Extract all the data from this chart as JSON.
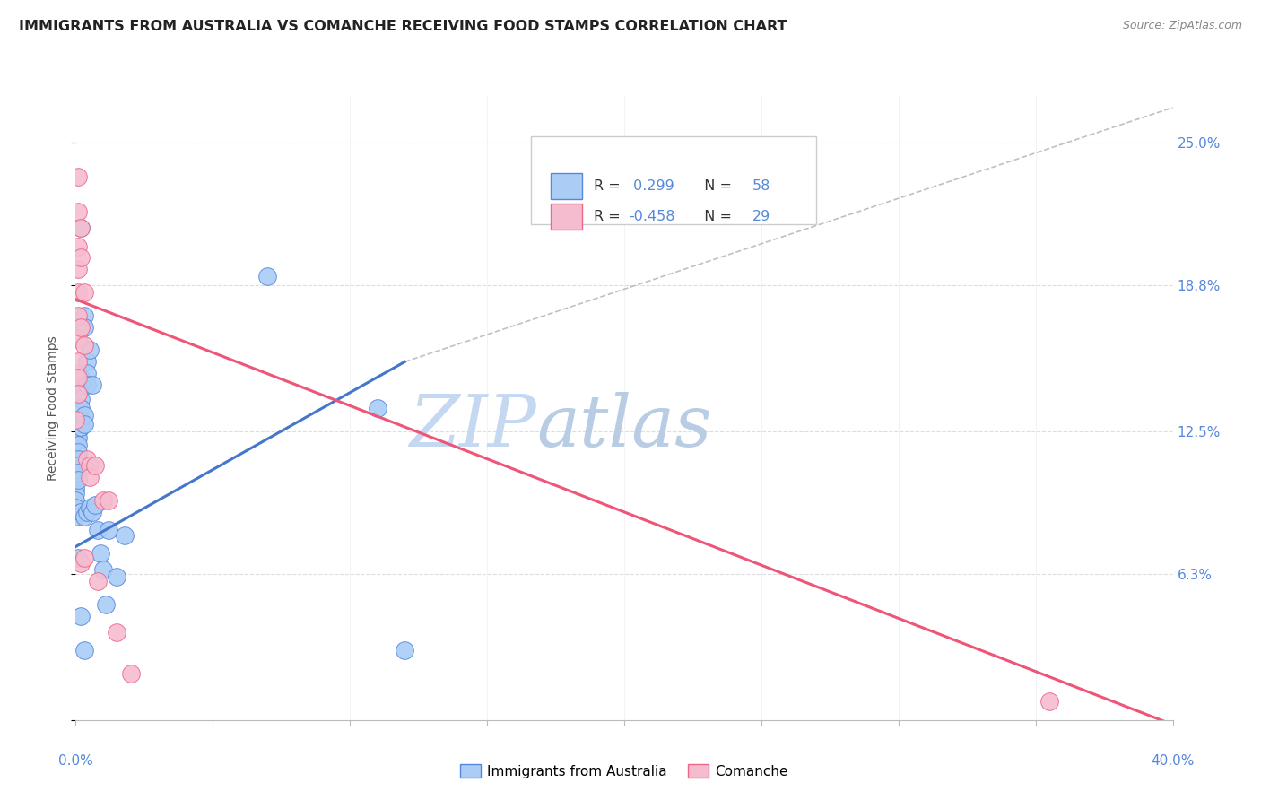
{
  "title": "IMMIGRANTS FROM AUSTRALIA VS COMANCHE RECEIVING FOOD STAMPS CORRELATION CHART",
  "source": "Source: ZipAtlas.com",
  "ylabel": "Receiving Food Stamps",
  "yticks": [
    0.0,
    0.063,
    0.125,
    0.188,
    0.25
  ],
  "ytick_labels": [
    "",
    "6.3%",
    "12.5%",
    "18.8%",
    "25.0%"
  ],
  "xlim": [
    0.0,
    0.4
  ],
  "ylim": [
    0.0,
    0.27
  ],
  "legend_blue_r": "0.299",
  "legend_blue_n": "58",
  "legend_pink_r": "-0.458",
  "legend_pink_n": "29",
  "blue_scatter": [
    [
      0.0,
      0.124
    ],
    [
      0.0,
      0.12
    ],
    [
      0.0,
      0.118
    ],
    [
      0.0,
      0.115
    ],
    [
      0.0,
      0.11
    ],
    [
      0.0,
      0.108
    ],
    [
      0.0,
      0.105
    ],
    [
      0.0,
      0.103
    ],
    [
      0.0,
      0.1
    ],
    [
      0.0,
      0.098
    ],
    [
      0.0,
      0.095
    ],
    [
      0.0,
      0.092
    ],
    [
      0.0,
      0.088
    ],
    [
      0.001,
      0.13
    ],
    [
      0.001,
      0.127
    ],
    [
      0.001,
      0.125
    ],
    [
      0.001,
      0.122
    ],
    [
      0.001,
      0.119
    ],
    [
      0.001,
      0.116
    ],
    [
      0.001,
      0.113
    ],
    [
      0.001,
      0.11
    ],
    [
      0.001,
      0.107
    ],
    [
      0.001,
      0.104
    ],
    [
      0.001,
      0.07
    ],
    [
      0.002,
      0.213
    ],
    [
      0.002,
      0.148
    ],
    [
      0.002,
      0.145
    ],
    [
      0.002,
      0.139
    ],
    [
      0.002,
      0.135
    ],
    [
      0.002,
      0.13
    ],
    [
      0.002,
      0.127
    ],
    [
      0.002,
      0.09
    ],
    [
      0.002,
      0.045
    ],
    [
      0.003,
      0.175
    ],
    [
      0.003,
      0.17
    ],
    [
      0.003,
      0.132
    ],
    [
      0.003,
      0.128
    ],
    [
      0.003,
      0.088
    ],
    [
      0.003,
      0.03
    ],
    [
      0.004,
      0.155
    ],
    [
      0.004,
      0.15
    ],
    [
      0.004,
      0.145
    ],
    [
      0.004,
      0.09
    ],
    [
      0.005,
      0.16
    ],
    [
      0.005,
      0.092
    ],
    [
      0.006,
      0.145
    ],
    [
      0.006,
      0.09
    ],
    [
      0.007,
      0.093
    ],
    [
      0.008,
      0.082
    ],
    [
      0.009,
      0.072
    ],
    [
      0.01,
      0.065
    ],
    [
      0.011,
      0.05
    ],
    [
      0.012,
      0.082
    ],
    [
      0.015,
      0.062
    ],
    [
      0.018,
      0.08
    ],
    [
      0.07,
      0.192
    ],
    [
      0.11,
      0.135
    ],
    [
      0.12,
      0.03
    ]
  ],
  "pink_scatter": [
    [
      0.0,
      0.15
    ],
    [
      0.0,
      0.13
    ],
    [
      0.001,
      0.235
    ],
    [
      0.001,
      0.22
    ],
    [
      0.001,
      0.205
    ],
    [
      0.001,
      0.195
    ],
    [
      0.001,
      0.185
    ],
    [
      0.001,
      0.175
    ],
    [
      0.001,
      0.165
    ],
    [
      0.001,
      0.155
    ],
    [
      0.001,
      0.148
    ],
    [
      0.001,
      0.141
    ],
    [
      0.002,
      0.213
    ],
    [
      0.002,
      0.2
    ],
    [
      0.002,
      0.17
    ],
    [
      0.002,
      0.068
    ],
    [
      0.003,
      0.185
    ],
    [
      0.003,
      0.162
    ],
    [
      0.003,
      0.07
    ],
    [
      0.004,
      0.113
    ],
    [
      0.005,
      0.11
    ],
    [
      0.005,
      0.105
    ],
    [
      0.007,
      0.11
    ],
    [
      0.008,
      0.06
    ],
    [
      0.01,
      0.095
    ],
    [
      0.012,
      0.095
    ],
    [
      0.015,
      0.038
    ],
    [
      0.02,
      0.02
    ],
    [
      0.355,
      0.008
    ]
  ],
  "blue_line_x": [
    0.0,
    0.12
  ],
  "blue_line_y": [
    0.075,
    0.155
  ],
  "pink_line_x": [
    0.0,
    0.4
  ],
  "pink_line_y": [
    0.182,
    -0.002
  ],
  "dashed_line_x": [
    0.12,
    0.4
  ],
  "dashed_line_y": [
    0.155,
    0.265
  ],
  "blue_color": "#aaccf5",
  "pink_color": "#f5bcd0",
  "blue_edge_color": "#5588dd",
  "pink_edge_color": "#ee6688",
  "blue_line_color": "#4477cc",
  "pink_line_color": "#ee5577",
  "dashed_color": "#c0c0c0",
  "watermark_zip_color": "#c8d8f0",
  "watermark_atlas_color": "#c0d8e8",
  "background_color": "#ffffff",
  "title_fontsize": 11.5,
  "source_fontsize": 9
}
